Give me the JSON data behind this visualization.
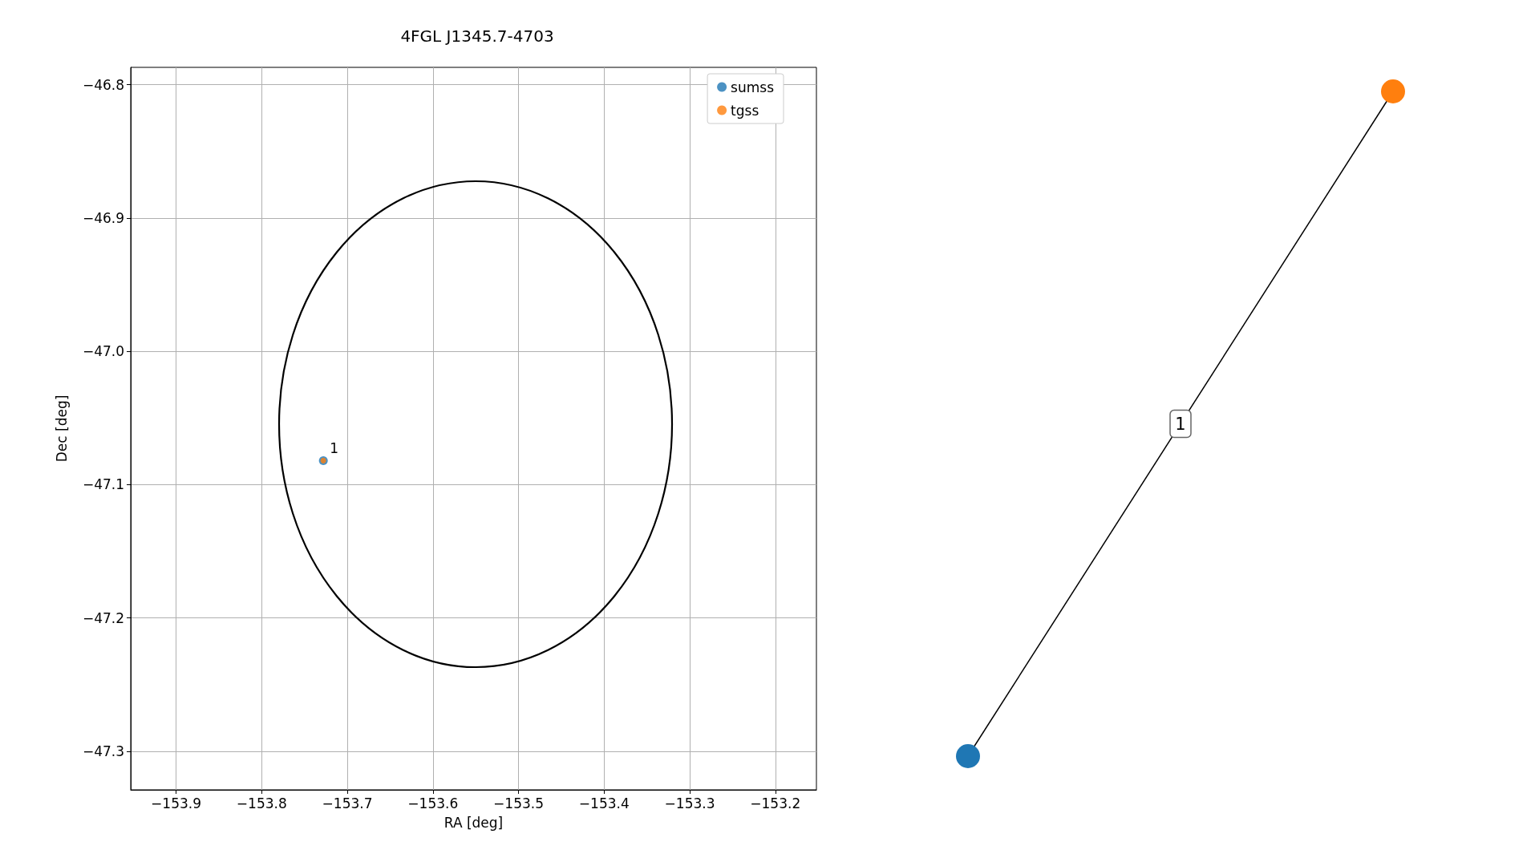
{
  "chart_data": [
    {
      "type": "scatter",
      "title": "4FGL J1345.7-4703",
      "xlabel": "RA [deg]",
      "ylabel": "Dec [deg]",
      "xlim": [
        -153.953,
        -153.152
      ],
      "ylim": [
        -47.329,
        -46.787
      ],
      "xticks": [
        -153.9,
        -153.8,
        -153.7,
        -153.6,
        -153.5,
        -153.4,
        -153.3,
        -153.2
      ],
      "yticks": [
        -47.3,
        -47.2,
        -47.1,
        {
          "value": -47.0,
          "label": "−47.0"
        },
        -46.9,
        -46.8
      ],
      "grid": true,
      "legend": "top right",
      "marker": "circle",
      "series": [
        {
          "name": "sumss",
          "color": "#1f77b4",
          "x": [
            -153.728
          ],
          "values": [
            -47.082
          ]
        },
        {
          "name": "tgss",
          "color": "#ff7f0e",
          "x": [
            -153.728
          ],
          "values": [
            -47.082
          ]
        }
      ],
      "annotations": [
        {
          "text": "1",
          "x": -153.728,
          "y": -47.082
        }
      ]
    },
    {
      "type": "other",
      "colors": [
        "#1f77b4",
        "#ff7f0e"
      ],
      "annotations": [
        "1"
      ]
    }
  ]
}
